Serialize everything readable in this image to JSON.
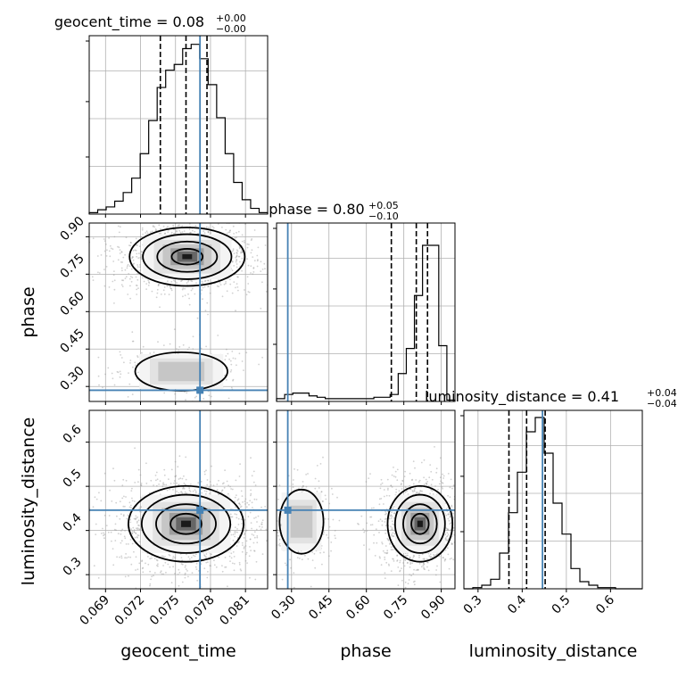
{
  "chart_data": {
    "type": "corner",
    "parameters": [
      "geocent_time",
      "phase",
      "luminosity_distance"
    ],
    "axis_labels": {
      "geocent_time": "geocent_time",
      "phase": "phase",
      "luminosity_distance": "luminosity_distance"
    },
    "colors": {
      "truth": "#4682b4",
      "hist": "#000000",
      "points": "#9a9a9a",
      "grid": "#b0b0b0"
    },
    "ranges": {
      "geocent_time": [
        0.0676,
        0.0829
      ],
      "phase": [
        0.24,
        0.955
      ],
      "luminosity_distance": [
        0.268,
        0.672
      ]
    },
    "ticks": {
      "geocent_time": [
        "0.069",
        "0.072",
        "0.075",
        "0.078",
        "0.081"
      ],
      "phase": [
        "0.30",
        "0.45",
        "0.60",
        "0.75",
        "0.90"
      ],
      "luminosity_distance": [
        "0.3",
        "0.4",
        "0.5",
        "0.6"
      ]
    },
    "truths": {
      "geocent_time": 0.0771,
      "phase": 0.285,
      "luminosity_distance": 0.446
    },
    "marginals": [
      {
        "param": "geocent_time",
        "title": {
          "name": "geocent_time",
          "median": "0.08",
          "upper": "+0.00",
          "lower": "−0.00"
        },
        "quantiles": [
          0.0737,
          0.0759,
          0.0777
        ],
        "density": [
          1,
          3,
          5,
          9,
          15,
          25,
          42,
          65,
          88,
          100,
          104,
          115,
          118,
          108,
          90,
          67,
          42,
          22,
          10,
          4,
          1
        ],
        "ymax": 124
      },
      {
        "param": "phase",
        "title": {
          "name": "phase",
          "median": "0.80",
          "upper": "+0.05",
          "lower": "−0.10"
        },
        "quantiles": [
          0.7,
          0.8,
          0.845
        ],
        "density": [
          2,
          5,
          6,
          6,
          4,
          3,
          2,
          2,
          2,
          2,
          2,
          2,
          3,
          3,
          5,
          20,
          38,
          76,
          112,
          112,
          40,
          1
        ],
        "ymax": 128
      },
      {
        "param": "luminosity_distance",
        "title": {
          "name": "luminosity_distance",
          "median": "0.41",
          "upper": "+0.04",
          "lower": "−0.04"
        },
        "quantiles": [
          0.37,
          0.41,
          0.452
        ],
        "density": [
          0,
          1,
          3,
          8,
          30,
          64,
          98,
          132,
          144,
          114,
          72,
          46,
          17,
          6,
          3,
          1,
          1,
          0,
          0,
          0
        ],
        "ymax": 150
      }
    ],
    "joints": [
      {
        "x": "geocent_time",
        "y": "phase",
        "modes": [
          {
            "x": 0.076,
            "y": 0.82,
            "sx": 0.0019,
            "sy": 0.045,
            "weight": 0.82
          },
          {
            "x": 0.0755,
            "y": 0.36,
            "sx": 0.0018,
            "sy": 0.035,
            "weight": 0.18
          }
        ]
      },
      {
        "x": "geocent_time",
        "y": "luminosity_distance",
        "modes": [
          {
            "x": 0.0759,
            "y": 0.415,
            "sx": 0.0019,
            "sy": 0.033,
            "weight": 1.0
          }
        ]
      },
      {
        "x": "phase",
        "y": "luminosity_distance",
        "modes": [
          {
            "x": 0.815,
            "y": 0.415,
            "sx": 0.05,
            "sy": 0.033,
            "weight": 0.8
          },
          {
            "x": 0.34,
            "y": 0.42,
            "sx": 0.04,
            "sy": 0.033,
            "weight": 0.2
          }
        ]
      }
    ]
  }
}
